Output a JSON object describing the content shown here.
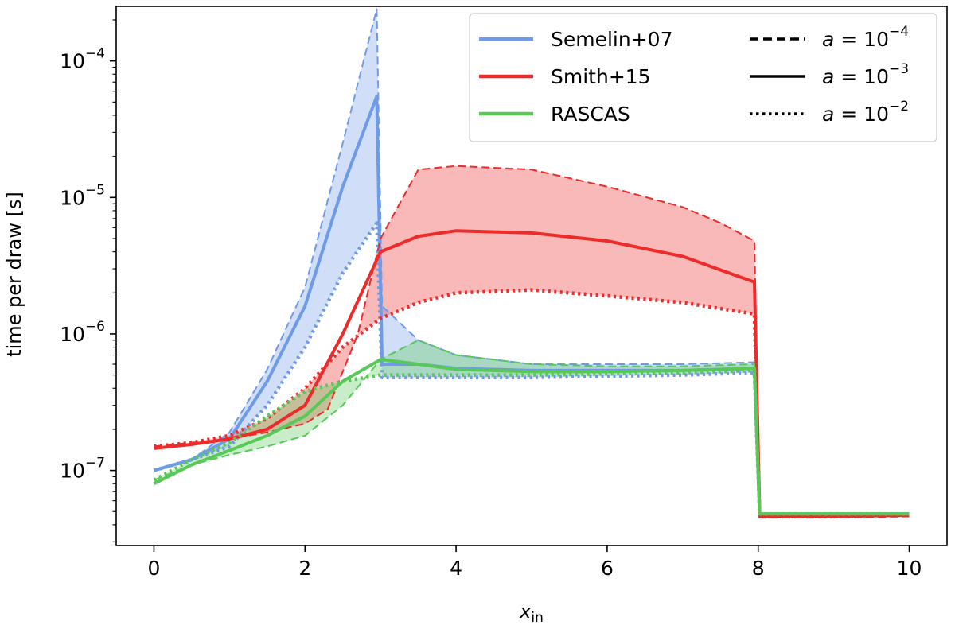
{
  "chart_data": {
    "type": "line",
    "title": "",
    "xlabel_main": "x",
    "xlabel_sub": "in",
    "ylabel": "time per draw [s]",
    "xlim": [
      -0.5,
      10.5
    ],
    "ylim_log10": [
      -7.55,
      -3.6
    ],
    "xticks": [
      0,
      2,
      4,
      6,
      8,
      10
    ],
    "xtick_labels": [
      "0",
      "2",
      "4",
      "6",
      "8",
      "10"
    ],
    "yticks_log10": [
      -7,
      -6,
      -5,
      -4
    ],
    "ytick_labels": [
      {
        "base": "10",
        "exp": "−7"
      },
      {
        "base": "10",
        "exp": "−6"
      },
      {
        "base": "10",
        "exp": "−5"
      },
      {
        "base": "10",
        "exp": "−4"
      }
    ],
    "legend_methods": [
      {
        "name": "Semelin+07",
        "color": "#6f9be6"
      },
      {
        "name": "Smith+15",
        "color": "#ee2b2b"
      },
      {
        "name": "RASCAS",
        "color": "#58c858"
      }
    ],
    "legend_styles": [
      {
        "prefix": "a = 10",
        "exp": "−4",
        "dash": "dashed"
      },
      {
        "prefix": "a = 10",
        "exp": "−3",
        "dash": "solid"
      },
      {
        "prefix": "a = 10",
        "exp": "−2",
        "dash": "dotted"
      }
    ],
    "series": [
      {
        "method": "Semelin+07",
        "a": "1e-4",
        "style": "dashed",
        "color": "#6f9be6",
        "points": [
          [
            0,
            1e-07
          ],
          [
            0.5,
            1.2e-07
          ],
          [
            1.0,
            1.9e-07
          ],
          [
            1.5,
            5.5e-07
          ],
          [
            2.0,
            2.2e-06
          ],
          [
            2.5,
            2.5e-05
          ],
          [
            2.95,
            0.00024
          ],
          [
            3.02,
            1.6e-06
          ],
          [
            3.5,
            9e-07
          ],
          [
            4.0,
            7e-07
          ],
          [
            5.0,
            6e-07
          ],
          [
            6.0,
            6e-07
          ],
          [
            7.0,
            6e-07
          ],
          [
            7.95,
            6.2e-07
          ],
          [
            8.02,
            4.8e-08
          ],
          [
            9.0,
            4.8e-08
          ],
          [
            10.0,
            4.8e-08
          ]
        ]
      },
      {
        "method": "Semelin+07",
        "a": "1e-3",
        "style": "solid",
        "color": "#6f9be6",
        "points": [
          [
            0,
            1e-07
          ],
          [
            0.5,
            1.2e-07
          ],
          [
            1.0,
            1.7e-07
          ],
          [
            1.5,
            4.5e-07
          ],
          [
            2.0,
            1.6e-06
          ],
          [
            2.5,
            1.2e-05
          ],
          [
            2.95,
            5.5e-05
          ],
          [
            3.02,
            6e-07
          ],
          [
            3.5,
            6e-07
          ],
          [
            4.0,
            5.6e-07
          ],
          [
            5.0,
            5.4e-07
          ],
          [
            6.0,
            5.4e-07
          ],
          [
            7.0,
            5.4e-07
          ],
          [
            7.95,
            5.6e-07
          ],
          [
            8.02,
            4.8e-08
          ],
          [
            9.0,
            4.8e-08
          ],
          [
            10.0,
            4.8e-08
          ]
        ]
      },
      {
        "method": "Semelin+07",
        "a": "1e-2",
        "style": "dotted",
        "color": "#6f9be6",
        "points": [
          [
            0,
            1e-07
          ],
          [
            0.5,
            1.2e-07
          ],
          [
            1.0,
            1.5e-07
          ],
          [
            1.5,
            3e-07
          ],
          [
            2.0,
            8e-07
          ],
          [
            2.5,
            2.8e-06
          ],
          [
            2.95,
            6.5e-06
          ],
          [
            3.02,
            4.8e-07
          ],
          [
            3.5,
            4.8e-07
          ],
          [
            4.0,
            4.8e-07
          ],
          [
            5.0,
            4.8e-07
          ],
          [
            6.0,
            4.9e-07
          ],
          [
            7.0,
            5e-07
          ],
          [
            7.95,
            5.2e-07
          ],
          [
            8.02,
            4.8e-08
          ],
          [
            9.0,
            4.8e-08
          ],
          [
            10.0,
            4.8e-08
          ]
        ]
      },
      {
        "method": "Smith+15",
        "a": "1e-4",
        "style": "dashed",
        "color": "#ee2b2b",
        "points": [
          [
            0,
            1.5e-07
          ],
          [
            0.5,
            1.6e-07
          ],
          [
            1.0,
            1.7e-07
          ],
          [
            1.5,
            1.9e-07
          ],
          [
            2.0,
            2.2e-07
          ],
          [
            2.3,
            2.8e-07
          ],
          [
            2.7,
            1e-06
          ],
          [
            3.0,
            5e-06
          ],
          [
            3.5,
            1.6e-05
          ],
          [
            4.0,
            1.7e-05
          ],
          [
            5.0,
            1.6e-05
          ],
          [
            6.0,
            1.2e-05
          ],
          [
            7.0,
            8.5e-06
          ],
          [
            7.5,
            6.5e-06
          ],
          [
            7.95,
            4.8e-06
          ],
          [
            8.02,
            4.5e-08
          ],
          [
            9.0,
            4.5e-08
          ],
          [
            10.0,
            4.6e-08
          ]
        ]
      },
      {
        "method": "Smith+15",
        "a": "1e-3",
        "style": "solid",
        "color": "#ee2b2b",
        "points": [
          [
            0,
            1.45e-07
          ],
          [
            0.5,
            1.55e-07
          ],
          [
            1.0,
            1.7e-07
          ],
          [
            1.5,
            2e-07
          ],
          [
            2.0,
            3e-07
          ],
          [
            2.5,
            1e-06
          ],
          [
            3.0,
            4e-06
          ],
          [
            3.5,
            5.2e-06
          ],
          [
            4.0,
            5.7e-06
          ],
          [
            5.0,
            5.5e-06
          ],
          [
            6.0,
            4.8e-06
          ],
          [
            7.0,
            3.7e-06
          ],
          [
            7.95,
            2.4e-06
          ],
          [
            8.02,
            4.6e-08
          ],
          [
            9.0,
            4.6e-08
          ],
          [
            10.0,
            4.7e-08
          ]
        ]
      },
      {
        "method": "Smith+15",
        "a": "1e-2",
        "style": "dotted",
        "color": "#ee2b2b",
        "points": [
          [
            0,
            1.5e-07
          ],
          [
            0.5,
            1.6e-07
          ],
          [
            1.0,
            1.8e-07
          ],
          [
            1.5,
            2.4e-07
          ],
          [
            2.0,
            4e-07
          ],
          [
            2.5,
            8e-07
          ],
          [
            3.0,
            1.3e-06
          ],
          [
            3.5,
            1.7e-06
          ],
          [
            4.0,
            2e-06
          ],
          [
            5.0,
            2.1e-06
          ],
          [
            6.0,
            1.9e-06
          ],
          [
            7.0,
            1.7e-06
          ],
          [
            7.95,
            1.4e-06
          ],
          [
            8.02,
            4.6e-08
          ],
          [
            9.0,
            4.7e-08
          ],
          [
            10.0,
            4.7e-08
          ]
        ]
      },
      {
        "method": "RASCAS",
        "a": "1e-4",
        "style": "dashed",
        "color": "#58c858",
        "points": [
          [
            0,
            8.5e-08
          ],
          [
            0.5,
            1.1e-07
          ],
          [
            1.0,
            1.3e-07
          ],
          [
            1.5,
            1.5e-07
          ],
          [
            2.0,
            1.8e-07
          ],
          [
            2.5,
            3e-07
          ],
          [
            3.0,
            6.5e-07
          ],
          [
            3.5,
            9e-07
          ],
          [
            4.0,
            7e-07
          ],
          [
            5.0,
            6e-07
          ],
          [
            6.0,
            5.8e-07
          ],
          [
            7.0,
            5.8e-07
          ],
          [
            7.95,
            6e-07
          ],
          [
            8.02,
            4.8e-08
          ],
          [
            9.0,
            4.8e-08
          ],
          [
            10.0,
            4.8e-08
          ]
        ]
      },
      {
        "method": "RASCAS",
        "a": "1e-3",
        "style": "solid",
        "color": "#58c858",
        "points": [
          [
            0,
            8e-08
          ],
          [
            0.5,
            1.1e-07
          ],
          [
            1.0,
            1.4e-07
          ],
          [
            1.5,
            1.8e-07
          ],
          [
            2.0,
            2.5e-07
          ],
          [
            2.5,
            4.5e-07
          ],
          [
            3.0,
            6.5e-07
          ],
          [
            3.5,
            6e-07
          ],
          [
            4.0,
            5.5e-07
          ],
          [
            5.0,
            5.3e-07
          ],
          [
            6.0,
            5.3e-07
          ],
          [
            7.0,
            5.4e-07
          ],
          [
            7.95,
            5.6e-07
          ],
          [
            8.02,
            4.8e-08
          ],
          [
            9.0,
            4.8e-08
          ],
          [
            10.0,
            4.8e-08
          ]
        ]
      },
      {
        "method": "RASCAS",
        "a": "1e-2",
        "style": "dotted",
        "color": "#58c858",
        "points": [
          [
            0,
            8.5e-08
          ],
          [
            0.5,
            1.2e-07
          ],
          [
            1.0,
            1.6e-07
          ],
          [
            1.5,
            2.5e-07
          ],
          [
            2.0,
            3.8e-07
          ],
          [
            2.5,
            4.5e-07
          ],
          [
            3.0,
            5e-07
          ],
          [
            3.5,
            5e-07
          ],
          [
            4.0,
            5e-07
          ],
          [
            5.0,
            5e-07
          ],
          [
            6.0,
            5.1e-07
          ],
          [
            7.0,
            5.2e-07
          ],
          [
            7.95,
            5.4e-07
          ],
          [
            8.02,
            4.8e-08
          ],
          [
            9.0,
            4.8e-08
          ],
          [
            10.0,
            4.8e-08
          ]
        ]
      }
    ]
  }
}
